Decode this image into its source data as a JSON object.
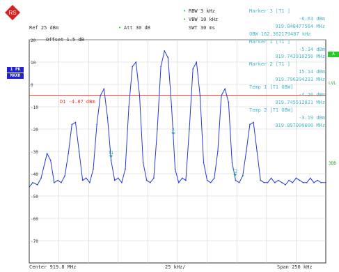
{
  "header": {
    "logo_icon": "rohde-schwarz-diamond-icon",
    "rbw": "RBW 3 kHz",
    "vbw": "VBW 10 kHz",
    "swt": "SWT 30 ms",
    "ref": "Ref  25 dBm",
    "att": "Att   30 dB",
    "offset": "Offset   1.5 dB"
  },
  "markers": [
    "Marker 3 [T1 ]",
    "-6.63 dBm",
    "919.848477564 MHz",
    "OBW 162.362179487 kHz",
    "Marker 1 [T1 ]",
    "-5.34 dBm",
    "919.743910256 MHz",
    "Marker 2 [T1 ]",
    "15.14 dBm",
    "919.796394231 MHz",
    "Temp 1 [T1 OBW]",
    "-4.26 dBm",
    "919.745512821 MHz",
    "Temp 2 [T1 OBW]",
    "-3.19 dBm",
    "919.897000000 MHz"
  ],
  "left_labels": {
    "trace_mode": "1 PK",
    "detector": "MAXH"
  },
  "right_labels": {
    "a": "A",
    "lvl": "LVL",
    "sgl": "3DB"
  },
  "display_line": {
    "label": "D1  -4.87 dBm",
    "value": -4.87,
    "color": "#e83828"
  },
  "trace_marks": [
    {
      "label": "T1",
      "x_khz": -56.1
    },
    {
      "label": "2",
      "x_khz": -3.6
    },
    {
      "label": "T2",
      "x_khz": 48.5
    }
  ],
  "footer": {
    "center": "Center  919.8 MHz",
    "div": "25 kHz/",
    "span": "Span  250 kHz"
  },
  "colors": {
    "trace": "#2038d8",
    "grid": "#cfcfcf",
    "text_cyan": "#48b8c8"
  },
  "chart_data": {
    "type": "line",
    "title": "",
    "xlabel": "",
    "ylabel": "",
    "xlim": [
      -125,
      125
    ],
    "ylim": [
      -80,
      20
    ],
    "y_ticks": [
      20,
      10,
      0,
      -10,
      -20,
      -30,
      -40,
      -50,
      -60,
      -70
    ],
    "y_tick_labels": [
      "20",
      "10",
      "0",
      "-10",
      "-20",
      "-30",
      "-40",
      "-50",
      "-60",
      "-70"
    ],
    "grid": true,
    "series": [
      {
        "x": [
          -125,
          -122,
          -118,
          -115,
          -110,
          -107,
          -104,
          -101,
          -98,
          -95,
          -92,
          -89,
          -86,
          -83,
          -80,
          -77,
          -74,
          -71,
          -68,
          -65,
          -62,
          -59,
          -56,
          -53,
          -50,
          -47,
          -44,
          -41,
          -38,
          -35,
          -32,
          -29,
          -26,
          -23,
          -20,
          -17,
          -14,
          -11,
          -8,
          -5,
          -2,
          1,
          4,
          7,
          10,
          13,
          16,
          19,
          22,
          25,
          28,
          31,
          34,
          37,
          40,
          43,
          46,
          49,
          52,
          55,
          58,
          61,
          64,
          67,
          70,
          73,
          76,
          79,
          82,
          85,
          88,
          91,
          94,
          97,
          100,
          103,
          106,
          109,
          112,
          115,
          118,
          121,
          125
        ],
        "y": [
          -46,
          -44,
          -45,
          -42,
          -31,
          -34,
          -44,
          -43,
          -44,
          -41,
          -31,
          -18,
          -17,
          -30,
          -43,
          -42,
          -44,
          -38,
          -18,
          -5,
          -2,
          -15,
          -34,
          -43,
          -42,
          -44,
          -38,
          -10,
          8,
          10,
          -5,
          -35,
          -43,
          -44,
          -42,
          -20,
          8,
          15,
          12,
          -10,
          -38,
          -44,
          -42,
          -43,
          -20,
          7,
          10,
          -5,
          -35,
          -43,
          -44,
          -42,
          -30,
          -5,
          -2,
          -8,
          -35,
          -43,
          -44,
          -41,
          -30,
          -18,
          -17,
          -30,
          -43,
          -44,
          -44,
          -42,
          -44,
          -43,
          -44,
          -45,
          -43,
          -44,
          -42,
          -43,
          -44,
          -44,
          -42,
          -44,
          -43,
          -44,
          -44
        ]
      }
    ]
  }
}
